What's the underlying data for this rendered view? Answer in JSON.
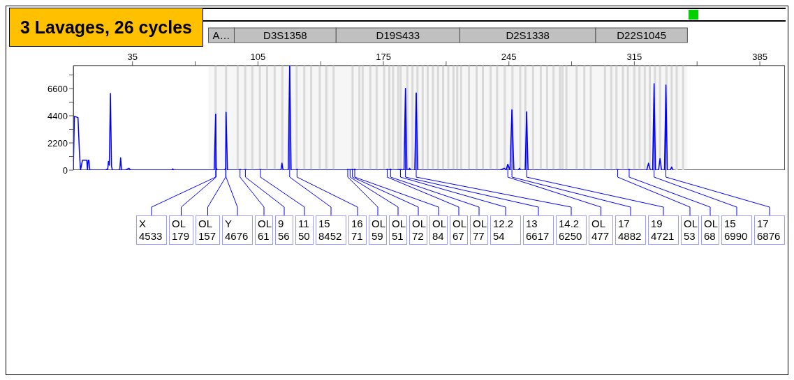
{
  "chart_data": {
    "type": "line",
    "title": "3 Lavages, 26 cycles",
    "xlim": [
      2,
      399
    ],
    "xticks": [
      35,
      {
        "value": 70,
        "label": null
      },
      105,
      {
        "value": 140,
        "label": null
      },
      175,
      {
        "value": 210,
        "label": null
      },
      245,
      {
        "value": 280,
        "label": null
      },
      315,
      {
        "value": 350,
        "label": null
      },
      385
    ],
    "ylim": [
      0,
      8460
    ],
    "yticks": [
      0,
      {
        "value": 1100,
        "label": null
      },
      2200,
      {
        "value": 3300,
        "label": null
      },
      4400,
      {
        "value": 5500,
        "label": null
      },
      6600,
      {
        "value": 7700,
        "label": null
      }
    ],
    "grid": false,
    "legend": false,
    "marker": "none",
    "line_style": "solid",
    "series": [
      {
        "color": "#0000ff",
        "x": [
          2,
          2.6,
          4.6,
          5.4,
          6.0,
          7.1,
          9.5,
          9.9,
          10.3,
          10.7,
          11.2,
          20,
          21.2,
          21.6,
          22.1,
          22.7,
          23.3,
          23.8,
          27.9,
          28.4,
          28.9,
          31,
          33,
          34,
          57,
          57.5,
          58,
          80.6,
          81.4,
          81.7,
          82.2,
          86.4,
          87.0,
          87.2,
          88.0,
          94.4,
          95.0,
          95.6,
          97.4,
          98.0,
          98.6,
          105.8,
          106.4,
          107.0,
          117.8,
          118.4,
          119,
          121.9,
          122.7,
          123.5,
          126.3,
          126.8,
          127.3,
          154.5,
          155.1,
          155.7,
          156.4,
          157.0,
          157.7,
          158.3,
          159.0,
          159.6,
          176.5,
          177.1,
          178.0,
          179.0,
          179.6,
          182,
          184.5,
          186.5,
          187.3,
          188.1,
          189,
          189.6,
          190.2,
          192.5,
          193.3,
          194.1,
          240,
          242.4,
          243.4,
          244.4,
          245.6,
          246.7,
          247.8,
          250.3,
          250.9,
          251.5,
          254.1,
          254.9,
          255.7,
          305.1,
          305.7,
          306.3,
          311.5,
          312.1,
          312.7,
          321.9,
          322.9,
          323.9,
          325.2,
          326.0,
          326.8,
          328.5,
          329.3,
          330.2,
          331.8,
          332.6,
          333.4,
          335.0,
          335.8,
          336.6
        ],
        "values": [
          0,
          4350,
          4250,
          1500,
          0,
          800,
          800,
          0,
          800,
          800,
          0,
          0,
          100,
          700,
          400,
          6200,
          300,
          0,
          0,
          1000,
          0,
          0,
          150,
          0,
          0,
          100,
          0,
          0,
          4533,
          179,
          0,
          0,
          157,
          4676,
          0,
          0,
          61,
          0,
          0,
          56,
          0,
          0,
          50,
          0,
          0,
          570,
          0,
          0,
          8452,
          0,
          0,
          71,
          0,
          0,
          59,
          0,
          51,
          0,
          72,
          0,
          84,
          0,
          0,
          67,
          0,
          77,
          0,
          0,
          54,
          0,
          6617,
          0,
          0,
          150,
          0,
          0,
          6250,
          0,
          0,
          150,
          0,
          477,
          0,
          4882,
          0,
          0,
          150,
          0,
          0,
          4721,
          0,
          0,
          53,
          0,
          0,
          68,
          0,
          0,
          560,
          0,
          0,
          6990,
          0,
          0,
          930,
          0,
          0,
          6876,
          0,
          0,
          250,
          0
        ]
      }
    ],
    "bands": [
      {
        "axis": "x",
        "from": 77.4,
        "to": 91.8,
        "label": "A…",
        "color": "#c0c0c0"
      },
      {
        "axis": "x",
        "from": 91.8,
        "to": 148.6,
        "label": "D3S1358",
        "color": "#c0c0c0"
      },
      {
        "axis": "x",
        "from": 148.6,
        "to": 217.6,
        "label": "D19S433",
        "color": "#c0c0c0"
      },
      {
        "axis": "x",
        "from": 217.6,
        "to": 293.4,
        "label": "D2S1338",
        "color": "#c0c0c0"
      },
      {
        "axis": "x",
        "from": 293.4,
        "to": 344.6,
        "label": "D22S1045",
        "color": "#c0c0c0"
      }
    ],
    "ref_lines": [
      {
        "axis": "x",
        "value": 81.4,
        "color": "#d9d9d9"
      },
      {
        "axis": "x",
        "value": 87.2,
        "color": "#d9d9d9"
      },
      {
        "axis": "x",
        "value": 93.7,
        "color": "#d9d9d9"
      },
      {
        "axis": "x",
        "value": 97.9,
        "color": "#d9d9d9"
      },
      {
        "axis": "x",
        "value": 101.9,
        "color": "#d9d9d9"
      },
      {
        "axis": "x",
        "value": 106.1,
        "color": "#d9d9d9"
      },
      {
        "axis": "x",
        "value": 110.1,
        "color": "#d9d9d9"
      },
      {
        "axis": "x",
        "value": 114.3,
        "color": "#d9d9d9"
      },
      {
        "axis": "x",
        "value": 118.6,
        "color": "#d9d9d9"
      },
      {
        "axis": "x",
        "value": 122.8,
        "color": "#d9d9d9"
      },
      {
        "axis": "x",
        "value": 126.6,
        "color": "#d9d9d9"
      },
      {
        "axis": "x",
        "value": 130.9,
        "color": "#d9d9d9"
      },
      {
        "axis": "x",
        "value": 134.7,
        "color": "#d9d9d9"
      },
      {
        "axis": "x",
        "value": 139.5,
        "color": "#d9d9d9"
      },
      {
        "axis": "x",
        "value": 143.2,
        "color": "#d9d9d9"
      },
      {
        "axis": "x",
        "value": 147.2,
        "color": "#d9d9d9"
      },
      {
        "axis": "x",
        "value": 157.8,
        "color": "#d9d9d9"
      },
      {
        "axis": "x",
        "value": 161.6,
        "color": "#d9d9d9"
      },
      {
        "axis": "x",
        "value": 163.4,
        "color": "#d9d9d9"
      },
      {
        "axis": "x",
        "value": 167.7,
        "color": "#d9d9d9"
      },
      {
        "axis": "x",
        "value": 171.2,
        "color": "#d9d9d9"
      },
      {
        "axis": "x",
        "value": 175.4,
        "color": "#d9d9d9"
      },
      {
        "axis": "x",
        "value": 178.3,
        "color": "#d9d9d9"
      },
      {
        "axis": "x",
        "value": 180.4,
        "color": "#d9d9d9"
      },
      {
        "axis": "x",
        "value": 183.3,
        "color": "#d9d9d9"
      },
      {
        "axis": "x",
        "value": 184.7,
        "color": "#d9d9d9"
      },
      {
        "axis": "x",
        "value": 188.3,
        "color": "#d9d9d9"
      },
      {
        "axis": "x",
        "value": 191.2,
        "color": "#d9d9d9"
      },
      {
        "axis": "x",
        "value": 194.0,
        "color": "#d9d9d9"
      },
      {
        "axis": "x",
        "value": 196.9,
        "color": "#d9d9d9"
      },
      {
        "axis": "x",
        "value": 199.7,
        "color": "#d9d9d9"
      },
      {
        "axis": "x",
        "value": 202.6,
        "color": "#d9d9d9"
      },
      {
        "axis": "x",
        "value": 205.5,
        "color": "#d9d9d9"
      },
      {
        "axis": "x",
        "value": 208.3,
        "color": "#d9d9d9"
      },
      {
        "axis": "x",
        "value": 211.2,
        "color": "#d9d9d9"
      },
      {
        "axis": "x",
        "value": 214.1,
        "color": "#d9d9d9"
      },
      {
        "axis": "x",
        "value": 216.2,
        "color": "#d9d9d9"
      },
      {
        "axis": "x",
        "value": 218.4,
        "color": "#d9d9d9"
      },
      {
        "axis": "x",
        "value": 222.7,
        "color": "#d9d9d9"
      },
      {
        "axis": "x",
        "value": 227.0,
        "color": "#d9d9d9"
      },
      {
        "axis": "x",
        "value": 230.5,
        "color": "#d9d9d9"
      },
      {
        "axis": "x",
        "value": 234.8,
        "color": "#d9d9d9"
      },
      {
        "axis": "x",
        "value": 238.4,
        "color": "#d9d9d9"
      },
      {
        "axis": "x",
        "value": 242.7,
        "color": "#d9d9d9"
      },
      {
        "axis": "x",
        "value": 247.0,
        "color": "#d9d9d9"
      },
      {
        "axis": "x",
        "value": 251.3,
        "color": "#d9d9d9"
      },
      {
        "axis": "x",
        "value": 254.2,
        "color": "#d9d9d9"
      },
      {
        "axis": "x",
        "value": 258.5,
        "color": "#d9d9d9"
      },
      {
        "axis": "x",
        "value": 262.8,
        "color": "#d9d9d9"
      },
      {
        "axis": "x",
        "value": 266.3,
        "color": "#d9d9d9"
      },
      {
        "axis": "x",
        "value": 269.9,
        "color": "#d9d9d9"
      },
      {
        "axis": "x",
        "value": 273.5,
        "color": "#d9d9d9"
      },
      {
        "axis": "x",
        "value": 274.9,
        "color": "#d9d9d9"
      },
      {
        "axis": "x",
        "value": 277.1,
        "color": "#d9d9d9"
      },
      {
        "axis": "x",
        "value": 282.8,
        "color": "#d9d9d9"
      },
      {
        "axis": "x",
        "value": 287.1,
        "color": "#d9d9d9"
      },
      {
        "axis": "x",
        "value": 290.7,
        "color": "#d9d9d9"
      },
      {
        "axis": "x",
        "value": 298.6,
        "color": "#d9d9d9"
      },
      {
        "axis": "x",
        "value": 302.1,
        "color": "#d9d9d9"
      },
      {
        "axis": "x",
        "value": 305.0,
        "color": "#d9d9d9"
      },
      {
        "axis": "x",
        "value": 308.6,
        "color": "#d9d9d9"
      },
      {
        "axis": "x",
        "value": 311.4,
        "color": "#d9d9d9"
      },
      {
        "axis": "x",
        "value": 315.0,
        "color": "#d9d9d9"
      },
      {
        "axis": "x",
        "value": 317.9,
        "color": "#d9d9d9"
      },
      {
        "axis": "x",
        "value": 320.8,
        "color": "#d9d9d9"
      },
      {
        "axis": "x",
        "value": 323.6,
        "color": "#d9d9d9"
      },
      {
        "axis": "x",
        "value": 326.5,
        "color": "#d9d9d9"
      },
      {
        "axis": "x",
        "value": 329.3,
        "color": "#d9d9d9"
      },
      {
        "axis": "x",
        "value": 332.9,
        "color": "#d9d9d9"
      },
      {
        "axis": "x",
        "value": 335.8,
        "color": "#d9d9d9"
      },
      {
        "axis": "x",
        "value": 338.6,
        "color": "#d9d9d9"
      },
      {
        "axis": "x",
        "value": 342.2,
        "color": "#d9d9d9"
      }
    ],
    "annotations": [
      {
        "text": "X\n4533",
        "x": 81.4,
        "y": 4533
      },
      {
        "text": "OL\n179",
        "x": 81.7,
        "y": 179
      },
      {
        "text": "OL\n157",
        "x": 87.0,
        "y": 157
      },
      {
        "text": "Y\n4676",
        "x": 87.2,
        "y": 4676
      },
      {
        "text": "OL\n61",
        "x": 95.0,
        "y": 61
      },
      {
        "text": "9\n56",
        "x": 98.0,
        "y": 56
      },
      {
        "text": "11\n50",
        "x": 106.4,
        "y": 50
      },
      {
        "text": "15\n8452",
        "x": 122.7,
        "y": 8452
      },
      {
        "text": "16\n71",
        "x": 126.8,
        "y": 71
      },
      {
        "text": "OL\n59",
        "x": 155.1,
        "y": 59
      },
      {
        "text": "OL\n51",
        "x": 156.4,
        "y": 51
      },
      {
        "text": "OL\n72",
        "x": 157.7,
        "y": 72
      },
      {
        "text": "OL\n84",
        "x": 159.0,
        "y": 84
      },
      {
        "text": "OL\n67",
        "x": 177.1,
        "y": 67
      },
      {
        "text": "OL\n77",
        "x": 179.0,
        "y": 77
      },
      {
        "text": "12.2\n54",
        "x": 184.5,
        "y": 54
      },
      {
        "text": "13\n6617",
        "x": 187.3,
        "y": 6617
      },
      {
        "text": "14.2\n6250",
        "x": 193.3,
        "y": 6250
      },
      {
        "text": "OL\n477",
        "x": 244.4,
        "y": 477
      },
      {
        "text": "17\n4882",
        "x": 246.7,
        "y": 4882
      },
      {
        "text": "19\n4721",
        "x": 254.9,
        "y": 4721
      },
      {
        "text": "OL\n53",
        "x": 305.7,
        "y": 53
      },
      {
        "text": "OL\n68",
        "x": 312.1,
        "y": 68
      },
      {
        "text": "15\n6990",
        "x": 326.0,
        "y": 6990
      },
      {
        "text": "17\n6876",
        "x": 332.6,
        "y": 6876
      }
    ]
  }
}
